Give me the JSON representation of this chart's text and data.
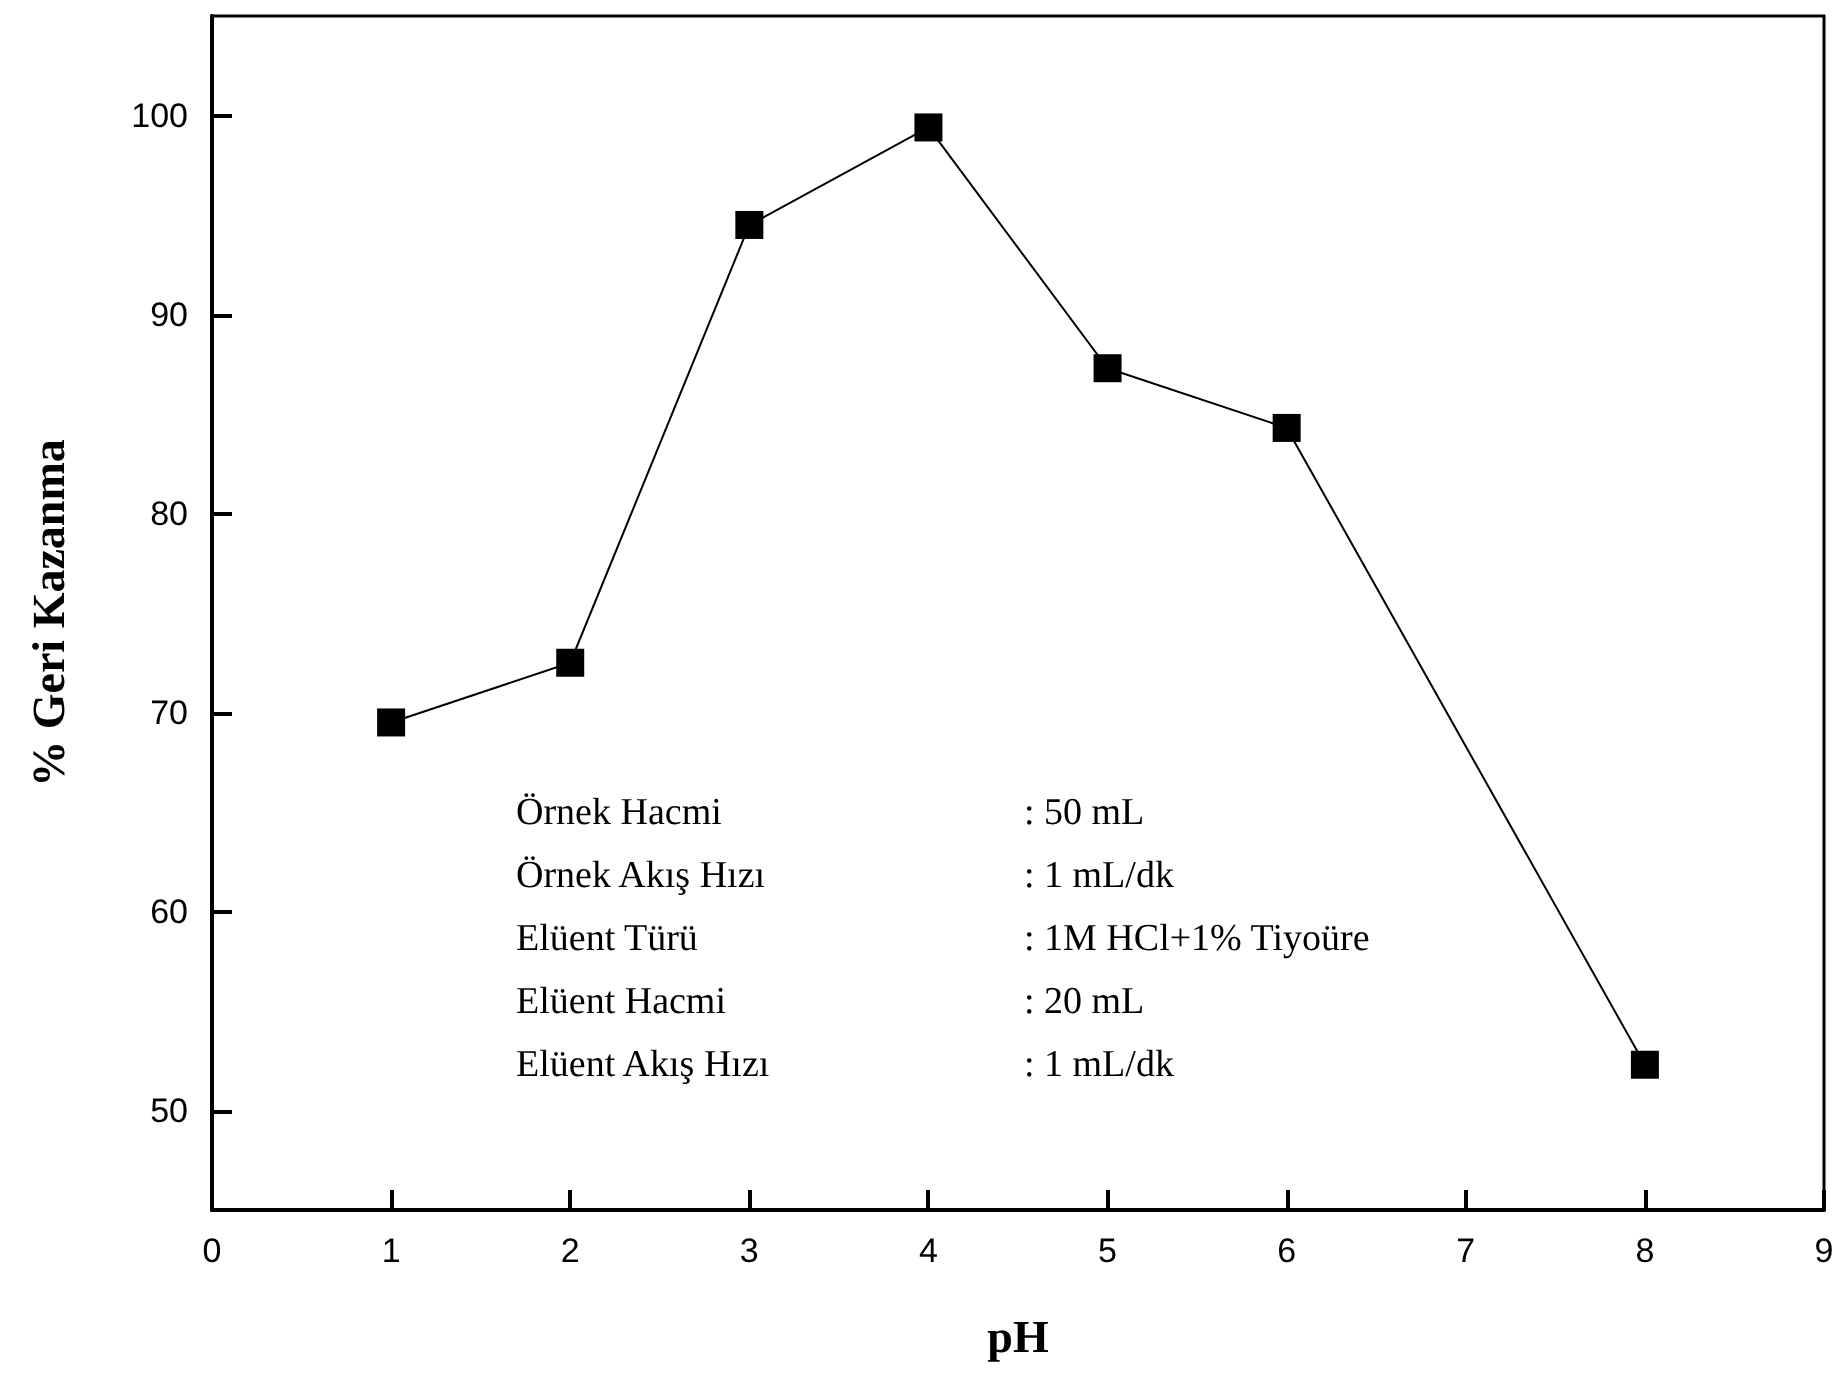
{
  "chart_data": {
    "type": "line",
    "xlabel": "pH",
    "ylabel": "% Geri Kazanma",
    "x": [
      1,
      2,
      3,
      4,
      5,
      6,
      8
    ],
    "series": [
      {
        "color": "#000000",
        "values": [
          69.5,
          72.5,
          94.5,
          99.4,
          87.3,
          84.3,
          52.3
        ]
      }
    ],
    "xlim": [
      0,
      9
    ],
    "xticks": [
      0,
      1,
      2,
      3,
      4,
      5,
      6,
      7,
      8,
      9
    ],
    "ylim": [
      45,
      105
    ],
    "yticks": [
      50,
      60,
      70,
      80,
      90,
      100
    ],
    "marker": "square",
    "line_style": "solid",
    "annotations": [
      "Örnek Hacmi",
      ": 50 mL",
      "Örnek Akış Hızı",
      ": 1 mL/dk",
      "Elüent Türü",
      ": 1M HCl+1% Tiyoüre",
      "Elüent Hacmi",
      ": 20 mL",
      "Elüent Akış Hızı",
      ": 1 mL/dk"
    ]
  }
}
